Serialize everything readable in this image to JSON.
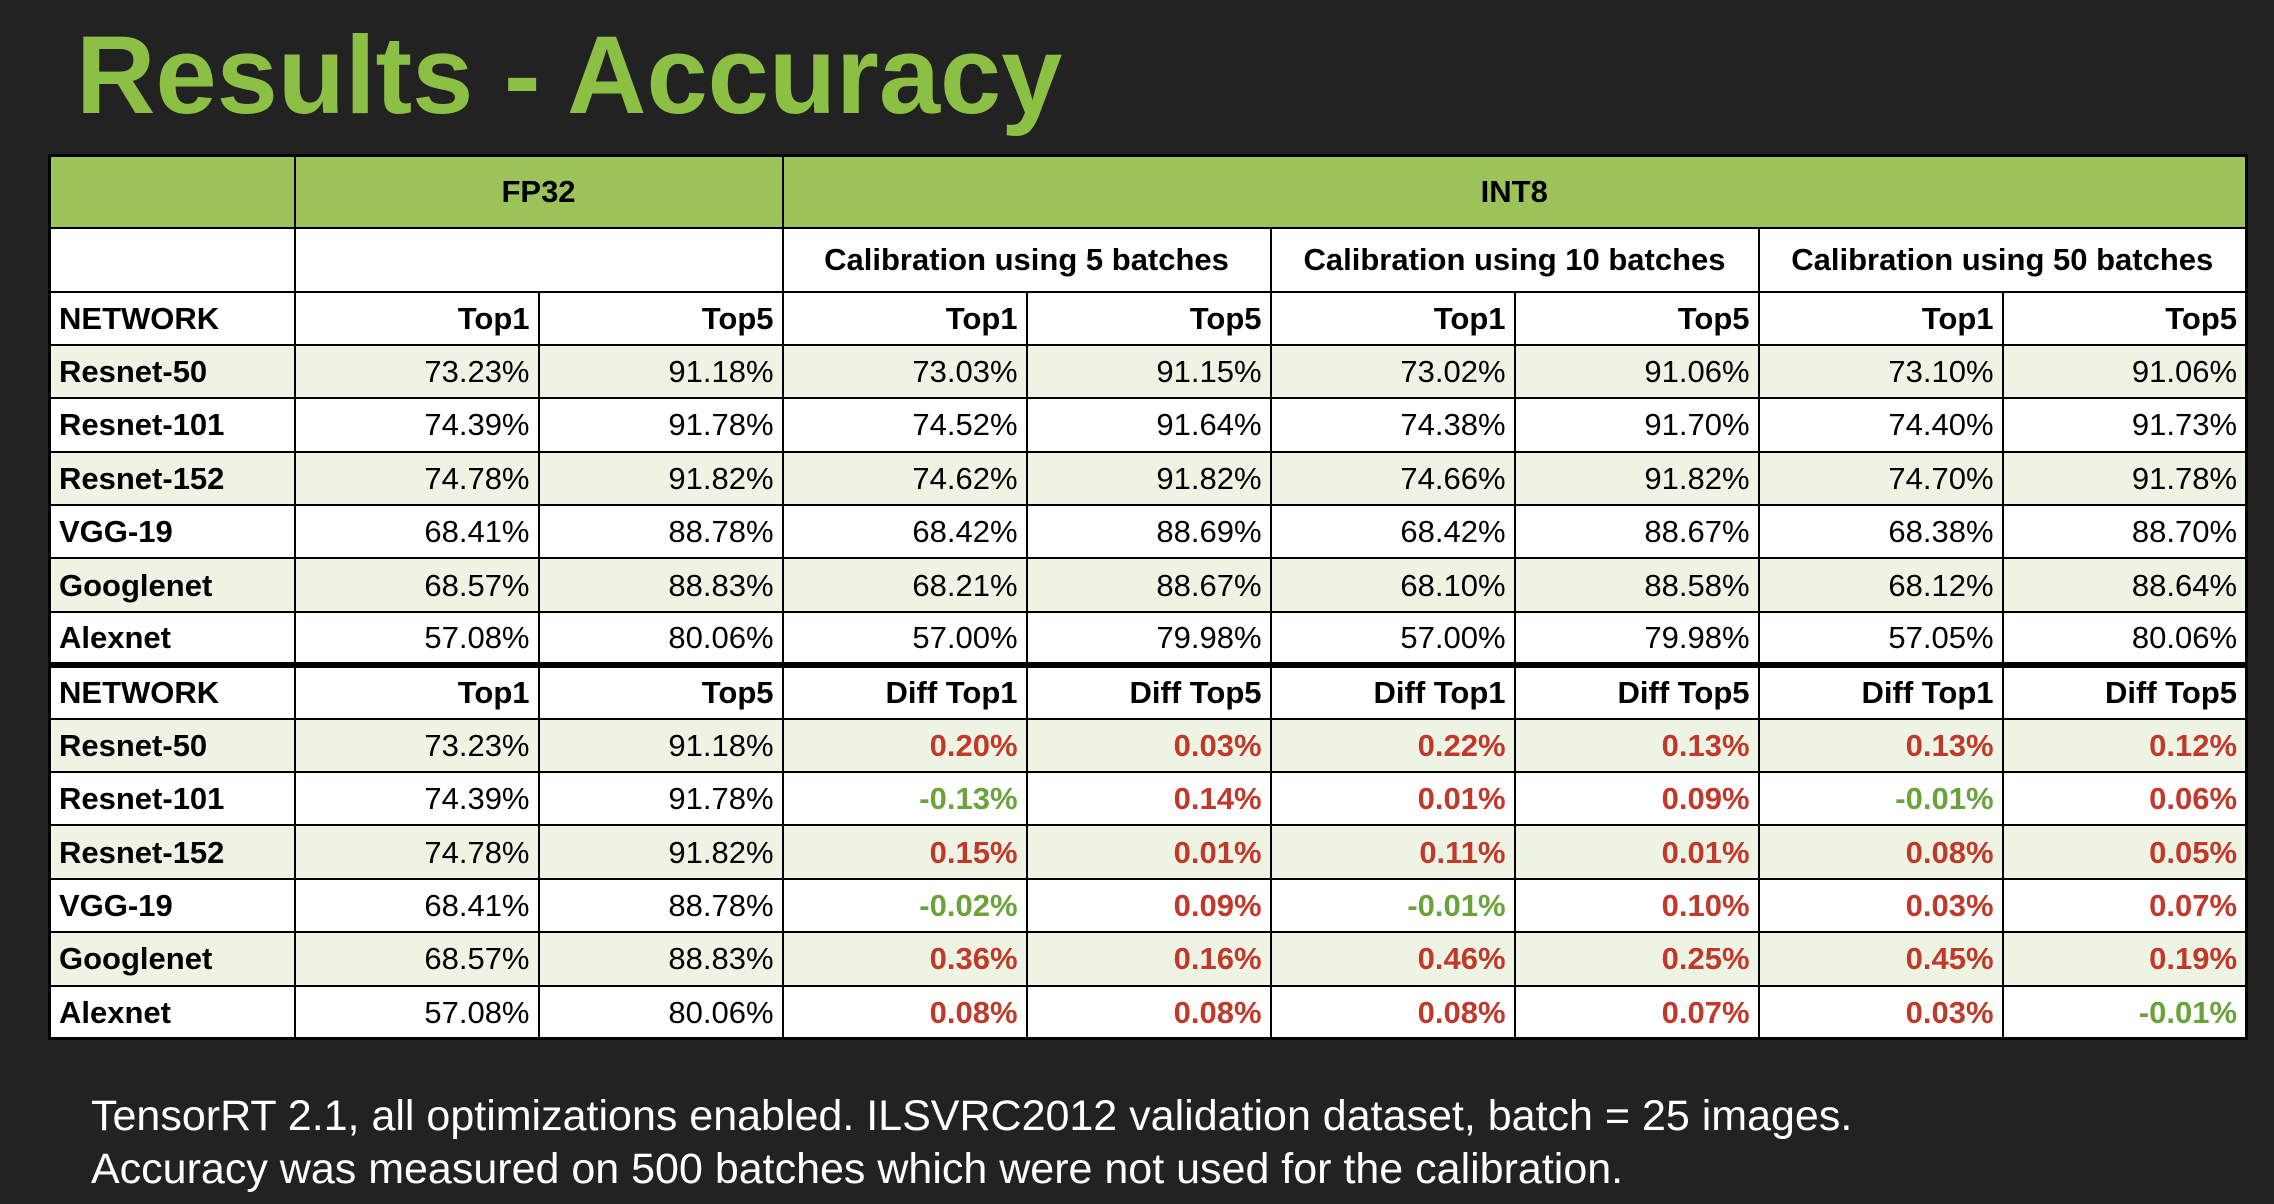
{
  "title": "Results - Accuracy",
  "table": {
    "header": {
      "fp32": "FP32",
      "int8": "INT8",
      "calibration_groups": [
        "Calibration using 5 batches",
        "Calibration using 10 batches",
        "Calibration using 50 batches"
      ]
    },
    "accuracy_section": {
      "columns": [
        "NETWORK",
        "Top1",
        "Top5",
        "Top1",
        "Top5",
        "Top1",
        "Top5",
        "Top1",
        "Top5"
      ],
      "rows": [
        [
          "Resnet-50",
          "73.23%",
          "91.18%",
          "73.03%",
          "91.15%",
          "73.02%",
          "91.06%",
          "73.10%",
          "91.06%"
        ],
        [
          "Resnet-101",
          "74.39%",
          "91.78%",
          "74.52%",
          "91.64%",
          "74.38%",
          "91.70%",
          "74.40%",
          "91.73%"
        ],
        [
          "Resnet-152",
          "74.78%",
          "91.82%",
          "74.62%",
          "91.82%",
          "74.66%",
          "91.82%",
          "74.70%",
          "91.78%"
        ],
        [
          "VGG-19",
          "68.41%",
          "88.78%",
          "68.42%",
          "88.69%",
          "68.42%",
          "88.67%",
          "68.38%",
          "88.70%"
        ],
        [
          "Googlenet",
          "68.57%",
          "88.83%",
          "68.21%",
          "88.67%",
          "68.10%",
          "88.58%",
          "68.12%",
          "88.64%"
        ],
        [
          "Alexnet",
          "57.08%",
          "80.06%",
          "57.00%",
          "79.98%",
          "57.00%",
          "79.98%",
          "57.05%",
          "80.06%"
        ]
      ]
    },
    "diff_section": {
      "columns": [
        "NETWORK",
        "Top1",
        "Top5",
        "Diff Top1",
        "Diff Top5",
        "Diff Top1",
        "Diff Top5",
        "Diff Top1",
        "Diff Top5"
      ],
      "rows": [
        [
          "Resnet-50",
          "73.23%",
          "91.18%",
          "0.20%",
          "0.03%",
          "0.22%",
          "0.13%",
          "0.13%",
          "0.12%"
        ],
        [
          "Resnet-101",
          "74.39%",
          "91.78%",
          "-0.13%",
          "0.14%",
          "0.01%",
          "0.09%",
          "-0.01%",
          "0.06%"
        ],
        [
          "Resnet-152",
          "74.78%",
          "91.82%",
          "0.15%",
          "0.01%",
          "0.11%",
          "0.01%",
          "0.08%",
          "0.05%"
        ],
        [
          "VGG-19",
          "68.41%",
          "88.78%",
          "-0.02%",
          "0.09%",
          "-0.01%",
          "0.10%",
          "0.03%",
          "0.07%"
        ],
        [
          "Googlenet",
          "68.57%",
          "88.83%",
          "0.36%",
          "0.16%",
          "0.46%",
          "0.25%",
          "0.45%",
          "0.19%"
        ],
        [
          "Alexnet",
          "57.08%",
          "80.06%",
          "0.08%",
          "0.08%",
          "0.08%",
          "0.07%",
          "0.03%",
          "-0.01%"
        ]
      ]
    }
  },
  "footnote": {
    "line1": "TensorRT 2.1, all optimizations enabled. ILSVRC2012 validation dataset, batch = 25 images.",
    "line2": "Accuracy was measured on 500 batches which were not used for the calibration."
  },
  "colors": {
    "background": "#222222",
    "title": "#8cc045",
    "header_fill": "#9bc35a",
    "row_tint": "#eef4e4",
    "diff_positive": "#c0392b",
    "diff_negative": "#6aa33a"
  }
}
